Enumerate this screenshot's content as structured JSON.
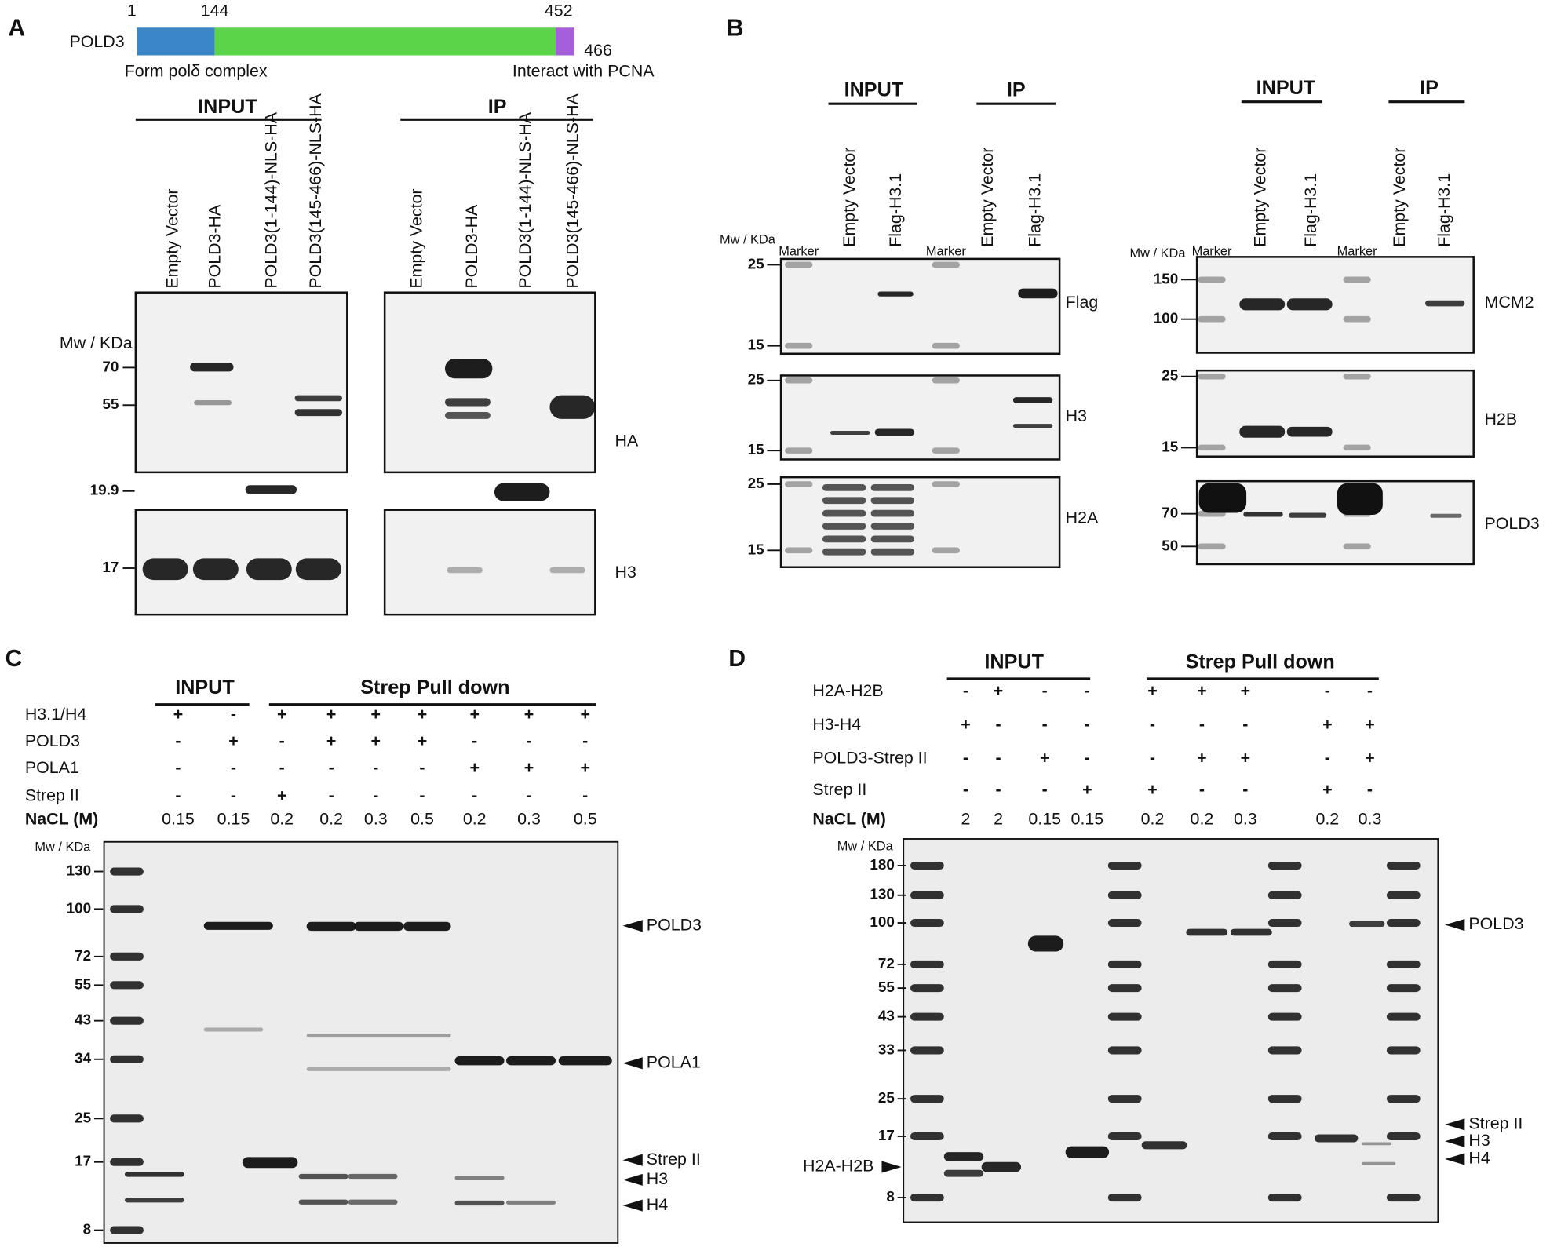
{
  "panel_a": {
    "label": "A",
    "domain": {
      "name": "POLD3",
      "positions": [
        "1",
        "144",
        "452",
        "466"
      ],
      "left_note": "Form polδ complex",
      "right_note": "Interact with PCNA"
    },
    "groups": [
      "INPUT",
      "IP"
    ],
    "lanes": [
      [
        "Empty Vector",
        "POLD3-HA",
        "POLD3(1-144)-NLS-HA",
        "POLD3(145-466)-NLS-HA"
      ],
      [
        "Empty Vector",
        "POLD3-HA",
        "POLD3(1-144)-NLS-HA",
        "POLD3(145-466)-NLS-HA"
      ]
    ],
    "mw_label": "Mw / KDa",
    "blots": [
      {
        "name": "HA",
        "markers": [
          "70",
          "55",
          "19.9"
        ]
      },
      {
        "name": "H3",
        "markers": [
          "17"
        ]
      }
    ]
  },
  "panel_b": {
    "label": "B",
    "halves": [
      {
        "groups": [
          "INPUT",
          "IP"
        ],
        "lanes": [
          "Marker",
          "Empty Vector",
          "Flag-H3.1",
          "Marker",
          "Empty Vector",
          "Flag-H3.1"
        ],
        "mw_label": "Mw / KDa",
        "blots": [
          {
            "name": "Flag",
            "markers": [
              "25",
              "15"
            ]
          },
          {
            "name": "H3",
            "markers": [
              "25",
              "15"
            ]
          },
          {
            "name": "H2A",
            "markers": [
              "25",
              "15"
            ]
          }
        ]
      },
      {
        "groups": [
          "INPUT",
          "IP"
        ],
        "lanes": [
          "Marker",
          "Empty Vector",
          "Flag-H3.1",
          "Marker",
          "Empty Vector",
          "Flag-H3.1"
        ],
        "mw_label": "Mw / KDa",
        "blots": [
          {
            "name": "MCM2",
            "markers": [
              "150",
              "100"
            ]
          },
          {
            "name": "H2B",
            "markers": [
              "25",
              "15"
            ]
          },
          {
            "name": "POLD3",
            "markers": [
              "70",
              "50"
            ]
          }
        ]
      }
    ]
  },
  "panel_c": {
    "label": "C",
    "groups": [
      "INPUT",
      "Strep Pull down"
    ],
    "conditions": [
      {
        "name": "H3.1/H4",
        "values": [
          "+",
          "-",
          "+",
          "+",
          "+",
          "+",
          "+",
          "+",
          "+"
        ]
      },
      {
        "name": "POLD3",
        "values": [
          "-",
          "+",
          "-",
          "+",
          "+",
          "+",
          "-",
          "-",
          "-"
        ]
      },
      {
        "name": "POLA1",
        "values": [
          "-",
          "-",
          "-",
          "-",
          "-",
          "-",
          "+",
          "+",
          "+"
        ]
      },
      {
        "name": "Strep II",
        "values": [
          "-",
          "-",
          "+",
          "-",
          "-",
          "-",
          "-",
          "-",
          "-"
        ]
      },
      {
        "name": "NaCL (M)",
        "values": [
          "0.15",
          "0.15",
          "0.2",
          "0.2",
          "0.3",
          "0.5",
          "0.2",
          "0.3",
          "0.5"
        ]
      }
    ],
    "mw_label": "Mw / KDa",
    "markers": [
      "130",
      "100",
      "72",
      "55",
      "43",
      "34",
      "25",
      "17",
      "8"
    ],
    "arrows": [
      "POLD3",
      "POLA1",
      "Strep II",
      "H3",
      "H4"
    ]
  },
  "panel_d": {
    "label": "D",
    "groups": [
      "INPUT",
      "Strep Pull down"
    ],
    "conditions": [
      {
        "name": "H2A-H2B",
        "values": [
          "-",
          "+",
          "-",
          "-",
          "+",
          "+",
          "+",
          "-",
          "-"
        ]
      },
      {
        "name": "H3-H4",
        "values": [
          "+",
          "-",
          "-",
          "-",
          "-",
          "-",
          "-",
          "+",
          "+"
        ]
      },
      {
        "name": "POLD3-Strep II",
        "values": [
          "-",
          "-",
          "+",
          "-",
          "-",
          "+",
          "+",
          "-",
          "+"
        ]
      },
      {
        "name": "Strep II",
        "values": [
          "-",
          "-",
          "-",
          "+",
          "+",
          "-",
          "-",
          "+",
          "-"
        ]
      },
      {
        "name": "NaCL (M)",
        "values": [
          "2",
          "2",
          "0.15",
          "0.15",
          "0.2",
          "0.2",
          "0.3",
          "0.2",
          "0.3"
        ]
      }
    ],
    "mw_label": "Mw / KDa",
    "markers": [
      "180",
      "130",
      "100",
      "72",
      "55",
      "43",
      "33",
      "25",
      "17",
      "8"
    ],
    "arrows": [
      "POLD3",
      "Strep II",
      "H3",
      "H4"
    ],
    "left_arrow": "H2A-H2B"
  }
}
